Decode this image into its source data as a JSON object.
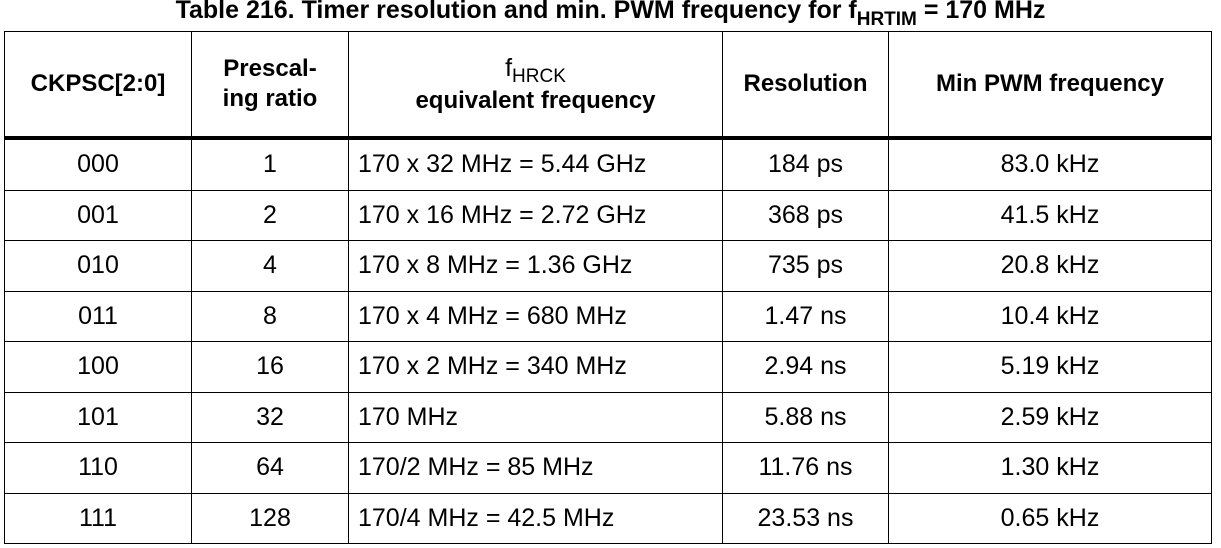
{
  "caption": {
    "prefix": "Table 216. Timer resolution and min. PWM frequency for f",
    "subscript": "HRTIM",
    "suffix": " = 170 MHz"
  },
  "headers": {
    "ckpsc": "CKPSC[2:0]",
    "prescaling_line1": "Prescal-",
    "prescaling_line2": "ing ratio",
    "fhrck_letter": "f",
    "fhrck_subscript": "HRCK",
    "fhrck_line2": "equivalent frequency",
    "resolution": "Resolution",
    "min_pwm": "Min PWM frequency"
  },
  "rows": [
    {
      "ckpsc": "000",
      "ratio": "1",
      "freq": "170 x 32 MHz = 5.44 GHz",
      "resolution": "184 ps",
      "min_pwm": "83.0 kHz"
    },
    {
      "ckpsc": "001",
      "ratio": "2",
      "freq": "170 x 16 MHz = 2.72 GHz",
      "resolution": "368 ps",
      "min_pwm": "41.5 kHz"
    },
    {
      "ckpsc": "010",
      "ratio": "4",
      "freq": "170 x 8 MHz = 1.36 GHz",
      "resolution": "735 ps",
      "min_pwm": "20.8 kHz"
    },
    {
      "ckpsc": "011",
      "ratio": "8",
      "freq": "170 x 4 MHz = 680 MHz",
      "resolution": "1.47 ns",
      "min_pwm": "10.4 kHz"
    },
    {
      "ckpsc": "100",
      "ratio": "16",
      "freq": "170 x 2 MHz = 340 MHz",
      "resolution": "2.94 ns",
      "min_pwm": "5.19 kHz"
    },
    {
      "ckpsc": "101",
      "ratio": "32",
      "freq": "170 MHz",
      "resolution": "5.88 ns",
      "min_pwm": "2.59 kHz"
    },
    {
      "ckpsc": "110",
      "ratio": "64",
      "freq": "170/2 MHz = 85 MHz",
      "resolution": "11.76 ns",
      "min_pwm": "1.30 kHz"
    },
    {
      "ckpsc": "111",
      "ratio": "128",
      "freq": "170/4 MHz = 42.5 MHz",
      "resolution": "23.53 ns",
      "min_pwm": "0.65 kHz"
    }
  ]
}
